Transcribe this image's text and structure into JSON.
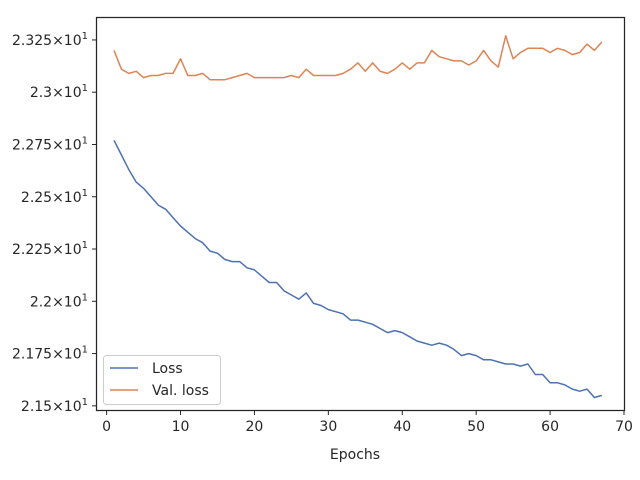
{
  "chart_data": {
    "type": "line",
    "xlabel": "Epochs",
    "ylabel": "",
    "xlim": [
      -1.3,
      70
    ],
    "ylim": [
      21.48,
      23.355
    ],
    "x_ticks": [
      0,
      10,
      20,
      30,
      40,
      50,
      60,
      70
    ],
    "y_ticks": [
      {
        "value": 21.5,
        "mantissa": "2.15",
        "exp": "1"
      },
      {
        "value": 21.75,
        "mantissa": "2.175",
        "exp": "1"
      },
      {
        "value": 22.0,
        "mantissa": "2.2",
        "exp": "1"
      },
      {
        "value": 22.25,
        "mantissa": "2.225",
        "exp": "1"
      },
      {
        "value": 22.5,
        "mantissa": "2.25",
        "exp": "1"
      },
      {
        "value": 22.75,
        "mantissa": "2.275",
        "exp": "1"
      },
      {
        "value": 23.0,
        "mantissa": "2.3",
        "exp": "1"
      },
      {
        "value": 23.25,
        "mantissa": "2.325",
        "exp": "1"
      }
    ],
    "tick_base": "10",
    "grid": false,
    "legend_position": "lower-left",
    "series": [
      {
        "name": "Loss",
        "color": "#4c72b0",
        "x": [
          1,
          2,
          3,
          4,
          5,
          6,
          7,
          8,
          9,
          10,
          11,
          12,
          13,
          14,
          15,
          16,
          17,
          18,
          19,
          20,
          21,
          22,
          23,
          24,
          25,
          26,
          27,
          28,
          29,
          30,
          31,
          32,
          33,
          34,
          35,
          36,
          37,
          38,
          39,
          40,
          41,
          42,
          43,
          44,
          45,
          46,
          47,
          48,
          49,
          50,
          51,
          52,
          53,
          54,
          55,
          56,
          57,
          58,
          59,
          60,
          61,
          62,
          63,
          64,
          65,
          66,
          67
        ],
        "y": [
          22.77,
          22.7,
          22.63,
          22.57,
          22.54,
          22.5,
          22.46,
          22.44,
          22.4,
          22.36,
          22.33,
          22.3,
          22.28,
          22.24,
          22.23,
          22.2,
          22.19,
          22.19,
          22.16,
          22.15,
          22.12,
          22.09,
          22.09,
          22.05,
          22.03,
          22.01,
          22.04,
          21.99,
          21.98,
          21.96,
          21.95,
          21.94,
          21.91,
          21.91,
          21.9,
          21.89,
          21.87,
          21.85,
          21.86,
          21.85,
          21.83,
          21.81,
          21.8,
          21.79,
          21.8,
          21.79,
          21.77,
          21.74,
          21.75,
          21.74,
          21.72,
          21.72,
          21.71,
          21.7,
          21.7,
          21.69,
          21.7,
          21.65,
          21.65,
          21.61,
          21.61,
          21.6,
          21.58,
          21.57,
          21.58,
          21.54,
          21.55
        ]
      },
      {
        "name": "Val. loss",
        "color": "#dd8452",
        "x": [
          1,
          2,
          3,
          4,
          5,
          6,
          7,
          8,
          9,
          10,
          11,
          12,
          13,
          14,
          15,
          16,
          17,
          18,
          19,
          20,
          21,
          22,
          23,
          24,
          25,
          26,
          27,
          28,
          29,
          30,
          31,
          32,
          33,
          34,
          35,
          36,
          37,
          38,
          39,
          40,
          41,
          42,
          43,
          44,
          45,
          46,
          47,
          48,
          49,
          50,
          51,
          52,
          53,
          54,
          55,
          56,
          57,
          58,
          59,
          60,
          61,
          62,
          63,
          64,
          65,
          66,
          67
        ],
        "y": [
          23.2,
          23.11,
          23.09,
          23.1,
          23.07,
          23.08,
          23.08,
          23.09,
          23.09,
          23.16,
          23.08,
          23.08,
          23.09,
          23.06,
          23.06,
          23.06,
          23.07,
          23.08,
          23.09,
          23.07,
          23.07,
          23.07,
          23.07,
          23.07,
          23.08,
          23.07,
          23.11,
          23.08,
          23.08,
          23.08,
          23.08,
          23.09,
          23.11,
          23.14,
          23.1,
          23.14,
          23.1,
          23.09,
          23.11,
          23.14,
          23.11,
          23.14,
          23.14,
          23.2,
          23.17,
          23.16,
          23.15,
          23.15,
          23.13,
          23.15,
          23.2,
          23.15,
          23.12,
          23.27,
          23.16,
          23.19,
          23.21,
          23.21,
          23.21,
          23.19,
          23.21,
          23.2,
          23.18,
          23.19,
          23.23,
          23.2,
          23.24
        ]
      }
    ]
  }
}
